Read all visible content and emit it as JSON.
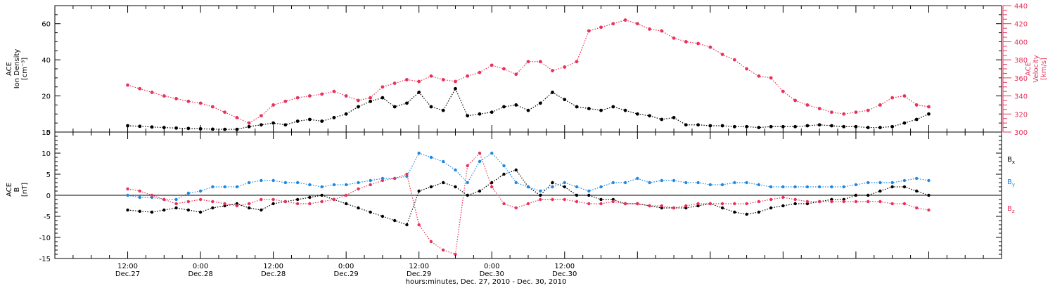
{
  "chart_data": [
    {
      "type": "scatter",
      "panel": "top",
      "ylabel_left": [
        "ACE",
        "Ion Density",
        "[cm⁻³]"
      ],
      "ylabel_right": [
        "ACE",
        "Velocity",
        "[km/s]"
      ],
      "y_left_range": [
        0,
        70
      ],
      "y_left_ticks": [
        "0",
        "20",
        "40",
        "60"
      ],
      "y_right_range": [
        300,
        440
      ],
      "y_right_ticks": [
        "300",
        "320",
        "340",
        "360",
        "380",
        "400",
        "420",
        "440"
      ],
      "series": [
        {
          "axis": "left",
          "color": "#000000",
          "x": [
            0,
            2,
            4,
            6,
            8,
            10,
            12,
            14,
            16,
            18,
            20,
            22,
            24,
            26,
            28,
            30,
            32,
            34,
            36,
            38,
            40,
            42,
            44,
            46,
            48,
            50,
            52,
            54,
            56,
            58,
            60,
            62,
            64,
            66,
            68,
            70,
            72,
            74,
            76,
            78,
            80,
            82,
            84,
            86,
            88,
            90,
            92,
            94,
            96,
            98,
            100,
            102,
            104,
            106,
            108,
            110,
            112,
            114,
            116,
            118,
            120,
            122,
            124,
            126,
            128,
            130,
            132
          ],
          "y": [
            3.5,
            3.2,
            2.8,
            2.5,
            2.2,
            2.0,
            1.8,
            1.6,
            1.5,
            1.5,
            3,
            4,
            5,
            4,
            6,
            7,
            6,
            8,
            10,
            14,
            17,
            19,
            14,
            16,
            22,
            14,
            12,
            24,
            9,
            10,
            11,
            14,
            15,
            12,
            16,
            22,
            18,
            14,
            13,
            12,
            14,
            12,
            10,
            9,
            7,
            8,
            4,
            4,
            3.5,
            3.5,
            3,
            3,
            2.5,
            3,
            3,
            3,
            3.5,
            4,
            3.5,
            3,
            3,
            2.5,
            2.5,
            3,
            5,
            7,
            10
          ]
        },
        {
          "axis": "right",
          "color": "#e8325a",
          "x": [
            0,
            2,
            4,
            6,
            8,
            10,
            12,
            14,
            16,
            18,
            20,
            22,
            24,
            26,
            28,
            30,
            32,
            34,
            36,
            38,
            40,
            42,
            44,
            46,
            48,
            50,
            52,
            54,
            56,
            58,
            60,
            62,
            64,
            66,
            68,
            70,
            72,
            74,
            76,
            78,
            80,
            82,
            84,
            86,
            88,
            90,
            92,
            94,
            96,
            98,
            100,
            102,
            104,
            106,
            108,
            110,
            112,
            114,
            116,
            118,
            120,
            122,
            124,
            126,
            128,
            130,
            132
          ],
          "y": [
            352,
            348,
            344,
            340,
            337,
            334,
            332,
            328,
            322,
            316,
            310,
            318,
            330,
            334,
            338,
            340,
            342,
            345,
            340,
            335,
            338,
            350,
            354,
            358,
            356,
            362,
            358,
            356,
            362,
            366,
            374,
            370,
            364,
            378,
            378,
            368,
            372,
            378,
            412,
            416,
            420,
            424,
            420,
            414,
            412,
            404,
            400,
            398,
            394,
            386,
            380,
            370,
            362,
            360,
            345,
            335,
            330,
            326,
            322,
            320,
            322,
            324,
            330,
            338,
            340,
            330,
            328
          ]
        }
      ]
    },
    {
      "type": "scatter",
      "panel": "bottom",
      "ylabel_left": [
        "ACE",
        "B",
        "[nT]"
      ],
      "y_range": [
        -15,
        15
      ],
      "y_ticks": [
        "-15",
        "-10",
        "-5",
        "0",
        "5",
        "10",
        "15"
      ],
      "legend_position": "right",
      "series": [
        {
          "name": "Bx",
          "color": "#000000",
          "x": [
            0,
            2,
            4,
            6,
            8,
            10,
            12,
            14,
            16,
            18,
            20,
            22,
            24,
            26,
            28,
            30,
            32,
            34,
            36,
            38,
            40,
            42,
            44,
            46,
            48,
            50,
            52,
            54,
            56,
            58,
            60,
            62,
            64,
            66,
            68,
            70,
            72,
            74,
            76,
            78,
            80,
            82,
            84,
            86,
            88,
            90,
            92,
            94,
            96,
            98,
            100,
            102,
            104,
            106,
            108,
            110,
            112,
            114,
            116,
            118,
            120,
            122,
            124,
            126,
            128,
            130,
            132
          ],
          "y": [
            -3.5,
            -3.8,
            -4,
            -3.5,
            -3,
            -3.5,
            -4,
            -3,
            -2.5,
            -2,
            -3,
            -3.5,
            -2,
            -1.5,
            -1,
            -0.5,
            0,
            -1,
            -2,
            -3,
            -4,
            -5,
            -6,
            -7,
            1,
            2,
            3,
            2,
            0,
            1,
            3,
            5,
            6,
            2,
            0,
            3,
            2,
            0,
            0,
            -1,
            -1,
            -2,
            -2,
            -2.5,
            -3,
            -3,
            -3,
            -2.5,
            -2,
            -3,
            -4,
            -4.5,
            -4,
            -3,
            -2.5,
            -2,
            -2,
            -1.5,
            -1,
            -1,
            0,
            0,
            1,
            2,
            2,
            1,
            0
          ]
        },
        {
          "name": "By",
          "color": "#1e88e5",
          "x": [
            0,
            2,
            4,
            6,
            8,
            10,
            12,
            14,
            16,
            18,
            20,
            22,
            24,
            26,
            28,
            30,
            32,
            34,
            36,
            38,
            40,
            42,
            44,
            46,
            48,
            50,
            52,
            54,
            56,
            58,
            60,
            62,
            64,
            66,
            68,
            70,
            72,
            74,
            76,
            78,
            80,
            82,
            84,
            86,
            88,
            90,
            92,
            94,
            96,
            98,
            100,
            102,
            104,
            106,
            108,
            110,
            112,
            114,
            116,
            118,
            120,
            122,
            124,
            126,
            128,
            130,
            132
          ],
          "y": [
            0,
            -0.5,
            -0.5,
            -1,
            -1,
            0.5,
            1,
            2,
            2,
            2,
            3,
            3.5,
            3.5,
            3,
            3,
            2.5,
            2,
            2.5,
            2.5,
            3,
            3.5,
            4,
            4,
            4.5,
            10,
            9,
            8,
            6,
            3,
            8,
            10,
            7,
            3,
            2,
            1,
            2,
            3,
            2,
            1,
            2,
            3,
            3,
            4,
            3,
            3.5,
            3.5,
            3,
            3,
            2.5,
            2.5,
            3,
            3,
            2.5,
            2,
            2,
            2,
            2,
            2,
            2,
            2,
            2.5,
            3,
            3,
            3,
            3.5,
            4,
            3.5
          ]
        },
        {
          "name": "Bz",
          "color": "#e8325a",
          "x": [
            0,
            2,
            4,
            6,
            8,
            10,
            12,
            14,
            16,
            18,
            20,
            22,
            24,
            26,
            28,
            30,
            32,
            34,
            36,
            38,
            40,
            42,
            44,
            46,
            48,
            50,
            52,
            54,
            56,
            58,
            60,
            62,
            64,
            66,
            68,
            70,
            72,
            74,
            76,
            78,
            80,
            82,
            84,
            86,
            88,
            90,
            92,
            94,
            96,
            98,
            100,
            102,
            104,
            106,
            108,
            110,
            112,
            114,
            116,
            118,
            120,
            122,
            124,
            126,
            128,
            130,
            132
          ],
          "y": [
            1.5,
            1,
            0,
            -1,
            -2,
            -1.5,
            -1,
            -1.5,
            -2,
            -2.5,
            -2,
            -1,
            -1,
            -1.5,
            -2,
            -2,
            -1.5,
            -1,
            0,
            1.5,
            2.5,
            3.5,
            4,
            5,
            -7,
            -11,
            -13,
            -14,
            7,
            10,
            2,
            -2,
            -3,
            -2,
            -1,
            -1,
            -1,
            -1.5,
            -2,
            -2,
            -1.5,
            -2,
            -2,
            -2.5,
            -2.5,
            -3,
            -2.5,
            -2,
            -2,
            -2,
            -2,
            -2,
            -1.5,
            -1,
            -0.5,
            -1,
            -1.5,
            -1.5,
            -1.5,
            -1.5,
            -1.5,
            -1.5,
            -1.5,
            -2,
            -2,
            -3,
            -3.5
          ]
        }
      ]
    }
  ],
  "x_axis": {
    "range": [
      -12,
      144
    ],
    "ticks": [
      {
        "x": 0,
        "time": "12:00",
        "date": "Dec.27"
      },
      {
        "x": 12,
        "time": "0:00",
        "date": "Dec.28"
      },
      {
        "x": 24,
        "time": "12:00",
        "date": "Dec.28"
      },
      {
        "x": 36,
        "time": "0:00",
        "date": "Dec.29"
      },
      {
        "x": 48,
        "time": "12:00",
        "date": "Dec.29"
      },
      {
        "x": 60,
        "time": "0:00",
        "date": "Dec.30"
      },
      {
        "x": 72,
        "time": "12:00",
        "date": "Dec.30"
      }
    ],
    "xlabel": "hours:minutes, Dec. 27, 2010 - Dec. 30, 2010"
  },
  "legend": {
    "bx_main": "B",
    "bx_sub": "x",
    "bx_color": "#000000",
    "by_main": "B",
    "by_sub": "y",
    "by_color": "#1e88e5",
    "bz_main": "B",
    "bz_sub": "z",
    "bz_color": "#e8325a"
  },
  "colors": {
    "density": "#000000",
    "velocity": "#e8325a",
    "axis_right": "#e8325a"
  }
}
